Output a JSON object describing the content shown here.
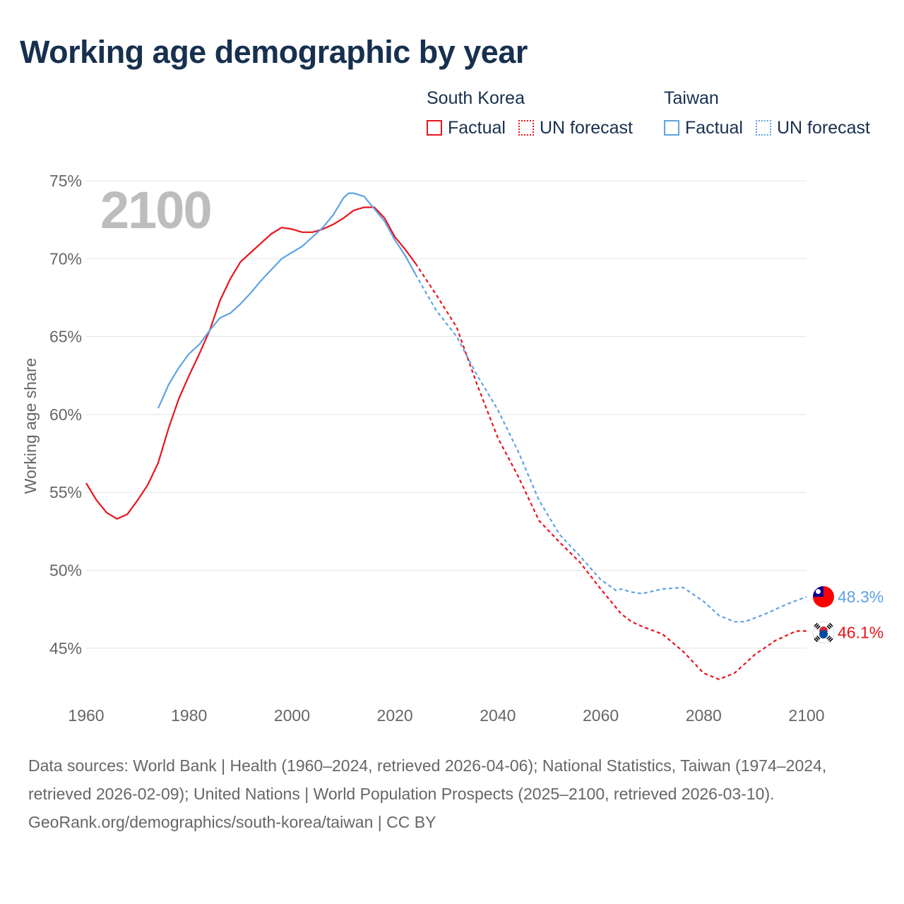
{
  "title": "Working age demographic by year",
  "legend": {
    "groups": [
      {
        "name": "South Korea",
        "color": "#e8141c",
        "factual_label": "Factual",
        "forecast_label": "UN forecast"
      },
      {
        "name": "Taiwan",
        "color": "#5ea3e4",
        "factual_label": "Factual",
        "forecast_label": "UN forecast"
      }
    ]
  },
  "year_watermark": "2100",
  "end_labels": {
    "taiwan": "48.3%",
    "south_korea": "46.1%"
  },
  "flags": {
    "taiwan": "taiwan-flag-icon",
    "south_korea": "south-korea-flag-icon"
  },
  "footer": {
    "sources": "Data sources: World Bank | Health (1960–2024, retrieved 2026-04-06); National Statistics, Taiwan (1974–2024, retrieved 2026-02-09); United Nations | World Population Prospects (2025–2100, retrieved 2026-03-10).",
    "credit": "GeoRank.org/demographics/south-korea/taiwan | CC BY"
  },
  "chart_data": {
    "type": "line",
    "title": "Working age demographic by year",
    "xlabel": "",
    "ylabel": "Working age share",
    "xlim": [
      1960,
      2100
    ],
    "ylim": [
      41.5,
      75
    ],
    "xticks": [
      1960,
      1980,
      2000,
      2020,
      2040,
      2060,
      2080,
      2100
    ],
    "xtick_labels": [
      "1960",
      "1980",
      "2000",
      "2020",
      "2040",
      "2060",
      "2080",
      "2100"
    ],
    "yticks": [
      45,
      50,
      55,
      60,
      65,
      70,
      75
    ],
    "ytick_labels": [
      "45%",
      "50%",
      "55%",
      "60%",
      "65%",
      "70%",
      "75%"
    ],
    "grid": true,
    "series": [
      {
        "name": "South Korea",
        "segment": "Factual",
        "color": "#e8141c",
        "dashed": false,
        "x": [
          1960,
          1962,
          1964,
          1966,
          1968,
          1970,
          1972,
          1974,
          1976,
          1978,
          1980,
          1982,
          1984,
          1986,
          1988,
          1990,
          1992,
          1994,
          1996,
          1998,
          2000,
          2002,
          2004,
          2006,
          2008,
          2010,
          2012,
          2014,
          2016,
          2018,
          2020,
          2022,
          2024
        ],
        "y": [
          55.6,
          54.5,
          53.7,
          53.3,
          53.6,
          54.5,
          55.5,
          56.9,
          59.1,
          61.0,
          62.5,
          63.9,
          65.4,
          67.3,
          68.7,
          69.8,
          70.4,
          71.0,
          71.6,
          72.0,
          71.9,
          71.7,
          71.7,
          71.9,
          72.2,
          72.6,
          73.1,
          73.3,
          73.3,
          72.6,
          71.4,
          70.6,
          69.7
        ]
      },
      {
        "name": "South Korea",
        "segment": "UN forecast",
        "color": "#e8141c",
        "dashed": true,
        "x": [
          2024,
          2028,
          2032,
          2036,
          2040,
          2044,
          2048,
          2052,
          2056,
          2060,
          2064,
          2066,
          2068,
          2072,
          2076,
          2080,
          2083,
          2086,
          2090,
          2094,
          2098,
          2100
        ],
        "y": [
          69.7,
          67.7,
          65.6,
          61.9,
          58.5,
          56.0,
          53.2,
          51.8,
          50.5,
          48.8,
          47.2,
          46.7,
          46.4,
          45.9,
          44.8,
          43.4,
          43.0,
          43.4,
          44.6,
          45.5,
          46.1,
          46.1
        ]
      },
      {
        "name": "Taiwan",
        "segment": "Factual",
        "color": "#5ea3e4",
        "dashed": false,
        "x": [
          1974,
          1976,
          1978,
          1980,
          1982,
          1984,
          1986,
          1988,
          1990,
          1992,
          1994,
          1996,
          1998,
          2000,
          2002,
          2004,
          2006,
          2008,
          2010,
          2011,
          2012,
          2014,
          2016,
          2018,
          2020,
          2022,
          2024
        ],
        "y": [
          60.4,
          61.9,
          63.0,
          63.9,
          64.5,
          65.4,
          66.2,
          66.5,
          67.1,
          67.8,
          68.6,
          69.3,
          70.0,
          70.4,
          70.8,
          71.4,
          72.0,
          72.8,
          73.9,
          74.2,
          74.2,
          74.0,
          73.2,
          72.4,
          71.2,
          70.2,
          69.0
        ]
      },
      {
        "name": "Taiwan",
        "segment": "UN forecast",
        "color": "#5ea3e4",
        "dashed": true,
        "x": [
          2024,
          2028,
          2032,
          2036,
          2040,
          2044,
          2048,
          2052,
          2056,
          2060,
          2063,
          2064,
          2066,
          2068,
          2072,
          2076,
          2080,
          2083,
          2086,
          2088,
          2092,
          2096,
          2100
        ],
        "y": [
          69.0,
          66.7,
          65.0,
          62.5,
          60.3,
          57.6,
          54.5,
          52.3,
          50.9,
          49.4,
          48.7,
          48.8,
          48.6,
          48.5,
          48.8,
          48.9,
          48.0,
          47.1,
          46.7,
          46.7,
          47.2,
          47.8,
          48.3
        ]
      }
    ]
  }
}
